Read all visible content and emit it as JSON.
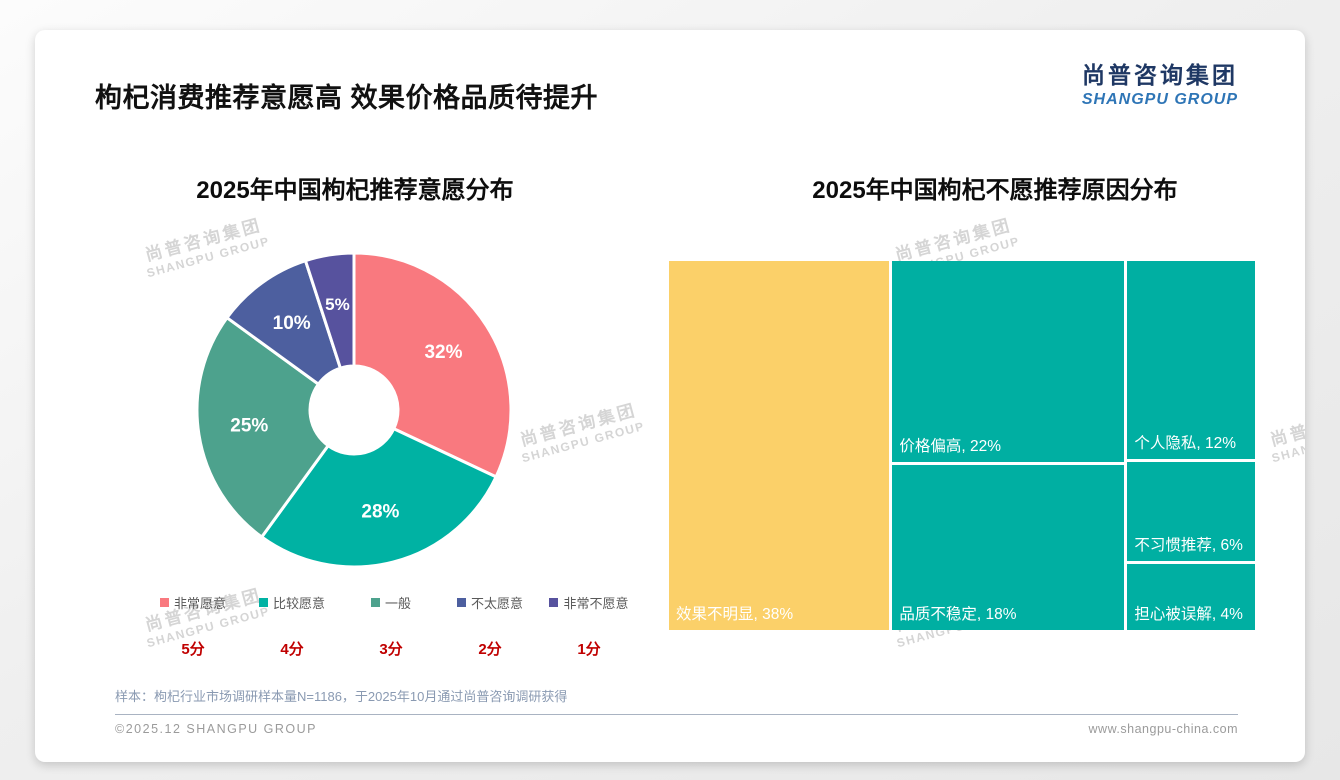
{
  "page": {
    "title": "枸杞消费推荐意愿高 效果价格品质待提升",
    "logo": {
      "cn": "尚普咨询集团",
      "en": "SHANGPU GROUP"
    },
    "watermark": {
      "cn": "尚普咨询集团",
      "en": "SHANGPU GROUP"
    },
    "note": "样本：枸杞行业市场调研样本量N=1186，于2025年10月通过尚普咨询调研获得",
    "footer_left": "©2025.12 SHANGPU GROUP",
    "footer_right": "www.shangpu-china.com"
  },
  "chart_data": [
    {
      "type": "pie",
      "title": "2025年中国枸杞推荐意愿分布",
      "donut": true,
      "start_angle_deg": 0,
      "direction": "clockwise",
      "categories": [
        "非常愿意",
        "比较愿意",
        "一般",
        "不太愿意",
        "非常不愿意"
      ],
      "scores": [
        "5分",
        "4分",
        "3分",
        "2分",
        "1分"
      ],
      "values": [
        32,
        28,
        25,
        10,
        5
      ],
      "value_labels": [
        "32%",
        "28%",
        "25%",
        "10%",
        "5%"
      ],
      "colors": [
        "#F9797F",
        "#00B2A3",
        "#4DA28D",
        "#4D5F9F",
        "#57529E"
      ],
      "legend_position": "bottom",
      "score_color": "#C00000"
    },
    {
      "type": "treemap",
      "title": "2025年中国枸杞不愿推荐原因分布",
      "items": [
        {
          "label": "效果不明显",
          "value": 38,
          "display": "效果不明显, 38%",
          "color": "#FBD069"
        },
        {
          "label": "价格偏高",
          "value": 22,
          "display": "价格偏高, 22%",
          "color": "#00AFA2"
        },
        {
          "label": "品质不稳定",
          "value": 18,
          "display": "品质不稳定, 18%",
          "color": "#00AFA2"
        },
        {
          "label": "个人隐私",
          "value": 12,
          "display": "个人隐私, 12%",
          "color": "#00AFA2"
        },
        {
          "label": "不习惯推荐",
          "value": 6,
          "display": "不习惯推荐, 6%",
          "color": "#00AFA2"
        },
        {
          "label": "担心被误解",
          "value": 4,
          "display": "担心被误解, 4%",
          "color": "#00AFA2"
        }
      ],
      "layout_columns": [
        [
          0
        ],
        [
          1,
          2
        ],
        [
          3,
          4,
          5
        ]
      ]
    }
  ]
}
